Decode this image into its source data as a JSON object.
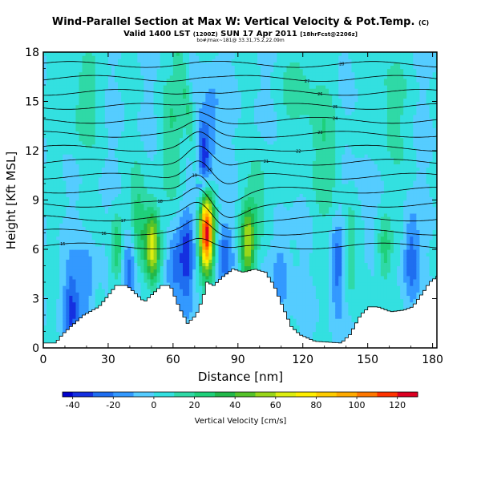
{
  "header": {
    "title_main": "Wind-Parallel Section at Max W: Vertical Velocity & Pot.Temp.",
    "title_mark": "(C)",
    "valid_line": "Valid 1400 LST",
    "valid_utc": "(1200Z)",
    "valid_date": "SUN 17 Apr 2011",
    "forecast_info": "[18hrFcst@2206z]",
    "source_line": "bo#/max~181@ 33.31,75.2,22.09m"
  },
  "chart_data": {
    "type": "heatmap",
    "title": "Wind-Parallel Section at Max W: Vertical Velocity & Pot.Temp.",
    "xlabel": "Distance [nm]",
    "ylabel": "Height [Kft MSL]",
    "xlim": [
      0,
      182
    ],
    "ylim": [
      0,
      18
    ],
    "xticks": [
      0,
      30,
      60,
      90,
      120,
      150,
      180
    ],
    "yticks": [
      0,
      3,
      6,
      9,
      12,
      15,
      18
    ],
    "colorbar": {
      "label": "Vertical Velocity [cm/s]",
      "ticks": [
        -40,
        -20,
        0,
        20,
        40,
        60,
        80,
        100,
        120
      ],
      "range": [
        -45,
        130
      ],
      "levels": [
        -45,
        -40,
        -30,
        -20,
        -10,
        0,
        10,
        20,
        30,
        40,
        50,
        60,
        70,
        80,
        90,
        100,
        110,
        120,
        130
      ],
      "colors": [
        "#0000cc",
        "#1530e0",
        "#1f6ef0",
        "#3399ff",
        "#55ccff",
        "#33e0e0",
        "#2fd9a6",
        "#1fd07a",
        "#22b84a",
        "#55c22a",
        "#99d61a",
        "#ddee10",
        "#ffee00",
        "#ffcc00",
        "#ffaa00",
        "#ff7700",
        "#ff3300",
        "#dd0022"
      ]
    },
    "terrain": [
      [
        0,
        0.3
      ],
      [
        5,
        0.3
      ],
      [
        8,
        0.8
      ],
      [
        12,
        1.3
      ],
      [
        18,
        2.0
      ],
      [
        25,
        2.5
      ],
      [
        30,
        3.3
      ],
      [
        33,
        3.8
      ],
      [
        38,
        3.8
      ],
      [
        42,
        3.3
      ],
      [
        46,
        2.8
      ],
      [
        50,
        3.3
      ],
      [
        54,
        3.8
      ],
      [
        58,
        3.8
      ],
      [
        62,
        2.5
      ],
      [
        66,
        1.5
      ],
      [
        70,
        2.0
      ],
      [
        73,
        3.0
      ],
      [
        75,
        4.0
      ],
      [
        78,
        3.8
      ],
      [
        82,
        4.3
      ],
      [
        87,
        4.8
      ],
      [
        92,
        4.6
      ],
      [
        97,
        4.8
      ],
      [
        102,
        4.6
      ],
      [
        106,
        3.8
      ],
      [
        110,
        2.5
      ],
      [
        114,
        1.3
      ],
      [
        118,
        0.8
      ],
      [
        125,
        0.4
      ],
      [
        137,
        0.3
      ],
      [
        141,
        0.8
      ],
      [
        146,
        2.0
      ],
      [
        150,
        2.5
      ],
      [
        154,
        2.5
      ],
      [
        160,
        2.2
      ],
      [
        166,
        2.3
      ],
      [
        170,
        2.5
      ],
      [
        175,
        3.4
      ],
      [
        178,
        4.0
      ],
      [
        182,
        4.4
      ]
    ],
    "updraft_cores": [
      {
        "x": 75.5,
        "y": 7.0,
        "w_max": 125
      },
      {
        "x": 50.5,
        "y": 6.2,
        "w_max": 68
      },
      {
        "x": 94.5,
        "y": 6.3,
        "w_max": 55
      },
      {
        "x": 34.0,
        "y": 6.0,
        "w_max": 30
      },
      {
        "x": 158.0,
        "y": 6.0,
        "w_max": 28
      }
    ],
    "downdraft_cores": [
      {
        "x": 74.0,
        "y": 11.5,
        "w_min": -38
      },
      {
        "x": 66.0,
        "y": 5.5,
        "w_min": -35
      },
      {
        "x": 40.0,
        "y": 5.0,
        "w_min": -32
      },
      {
        "x": 13.0,
        "y": 2.5,
        "w_min": -30
      }
    ],
    "theta_labels": [
      "15",
      "16",
      "17",
      "18",
      "19",
      "20",
      "21",
      "22",
      "23",
      "24",
      "25",
      "26",
      "27",
      "28"
    ]
  }
}
